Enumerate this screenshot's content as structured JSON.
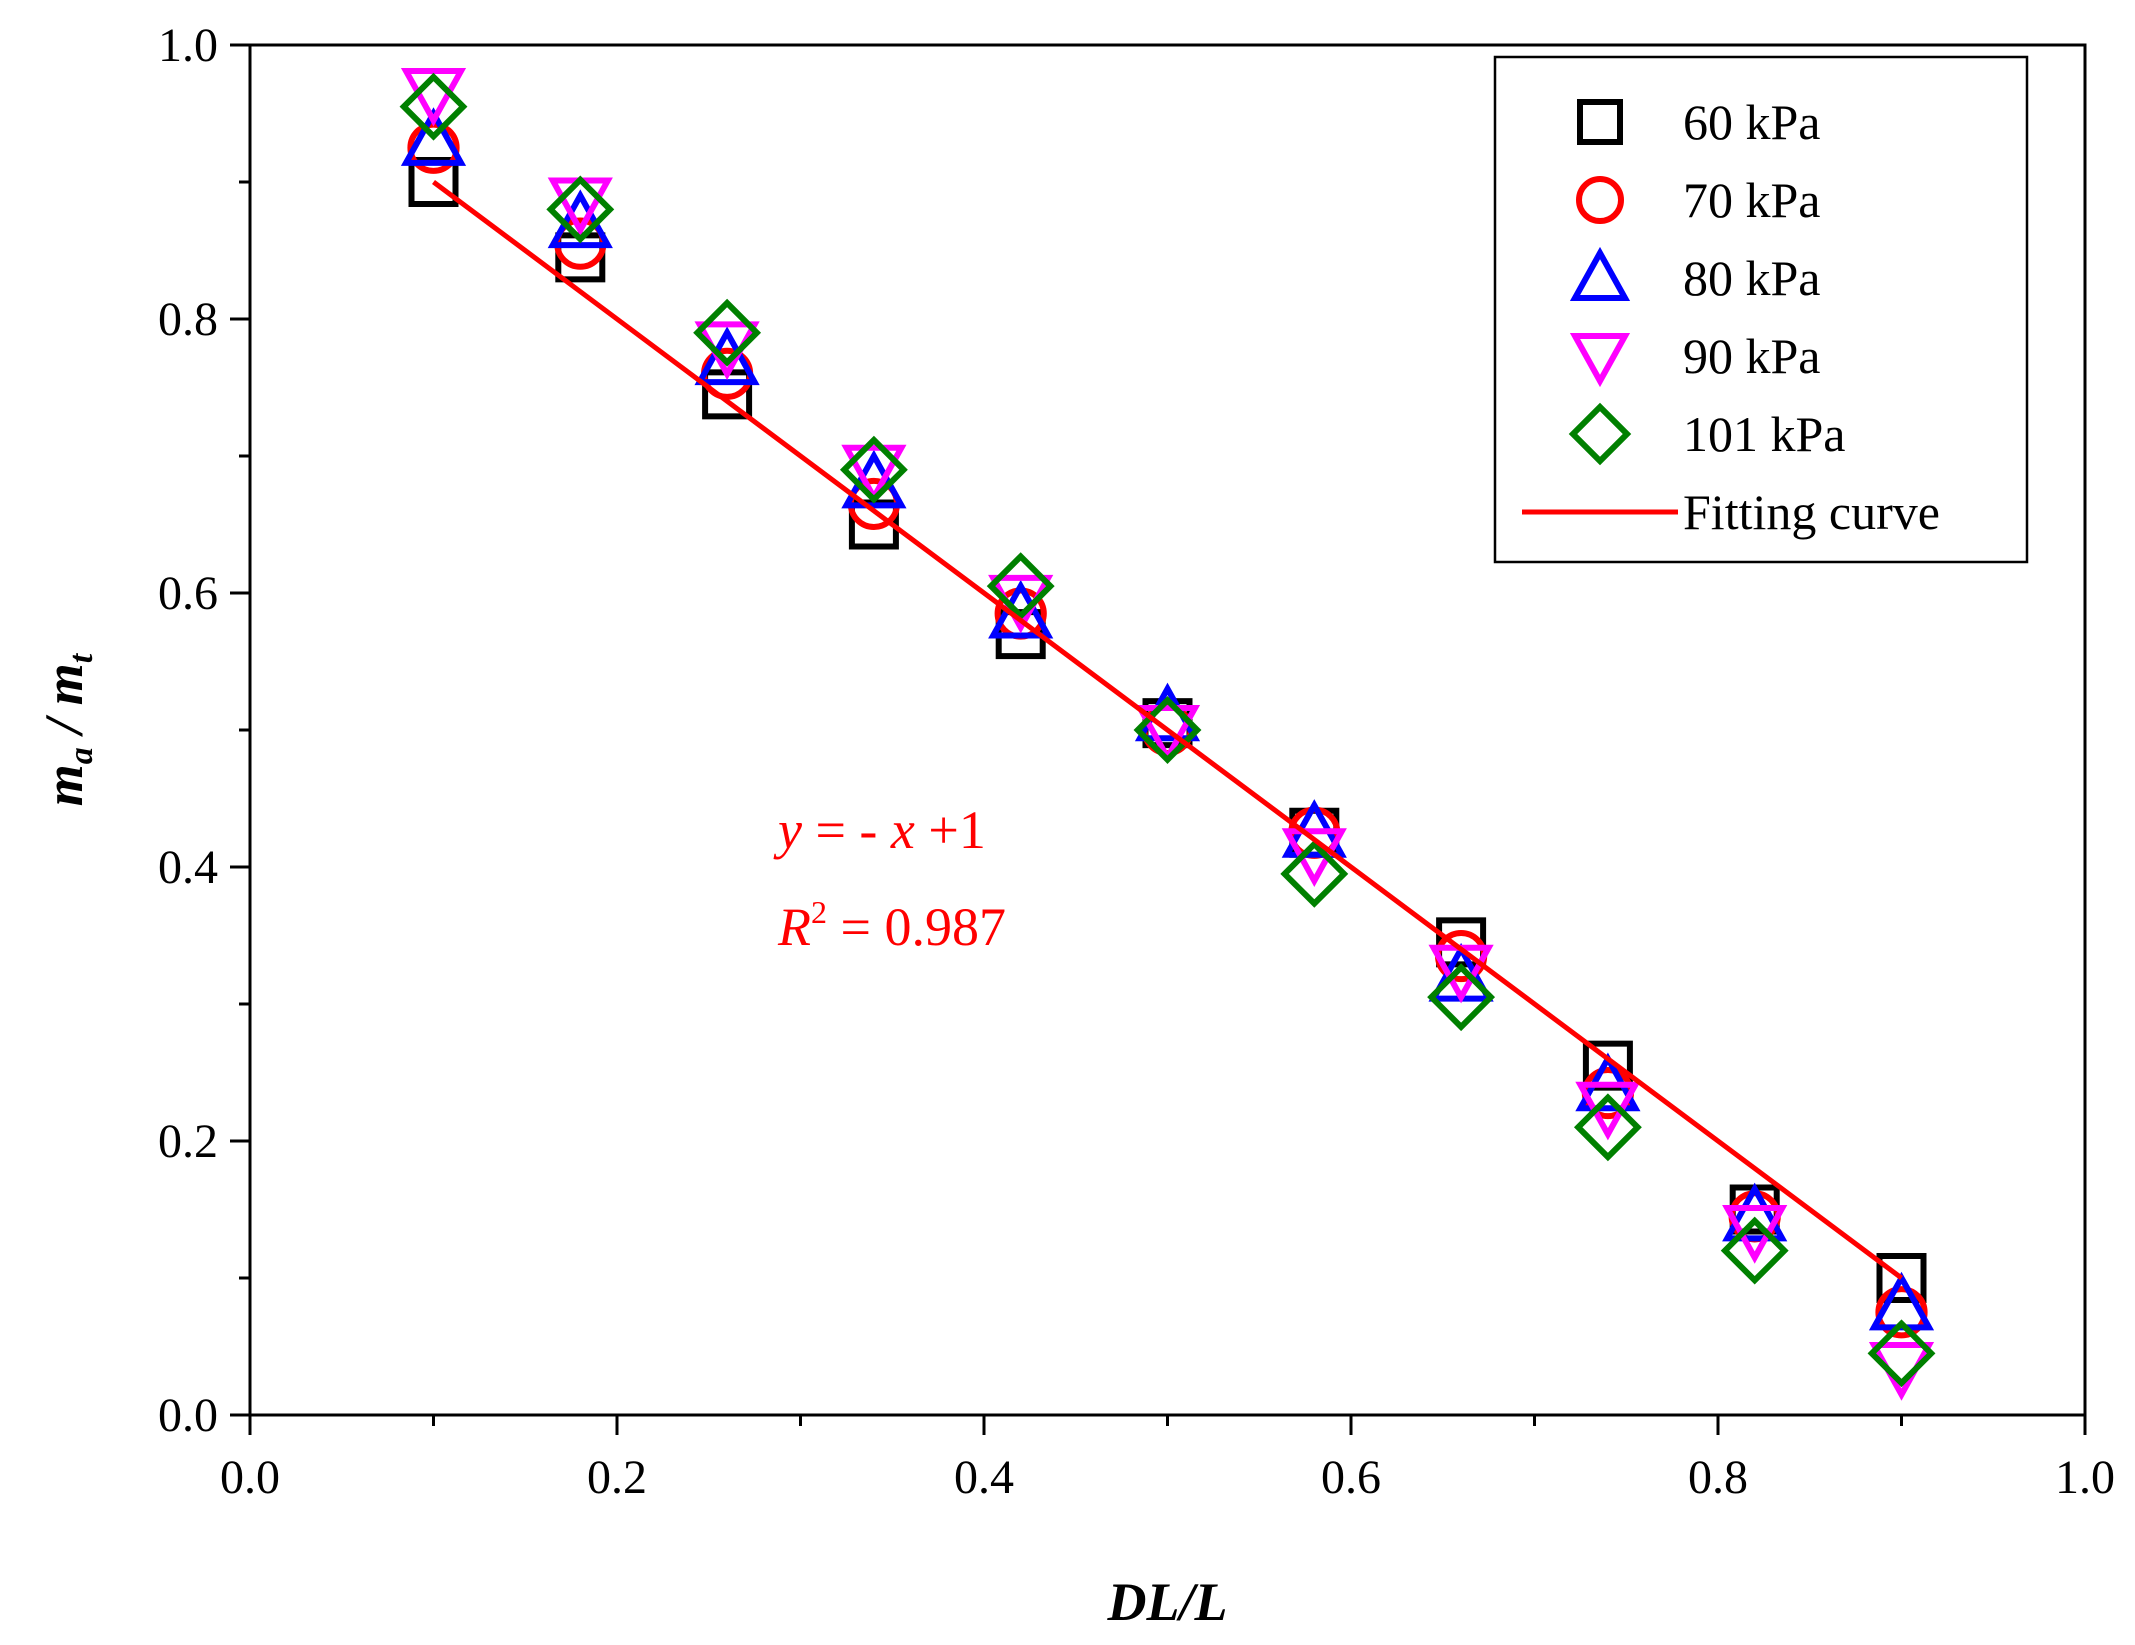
{
  "chart_data": {
    "type": "scatter",
    "title": "",
    "xlabel": "DL/L",
    "ylabel": {
      "main": "m",
      "sub_a": "a",
      "sep": " / ",
      "main2": "m",
      "sub_t": "t"
    },
    "xlim": [
      0.0,
      1.0
    ],
    "ylim": [
      0.0,
      1.0
    ],
    "x_ticks": [
      0.0,
      0.2,
      0.4,
      0.6,
      0.8,
      1.0
    ],
    "x_tick_labels": [
      "0.0",
      "0.2",
      "0.4",
      "0.6",
      "0.8",
      "1.0"
    ],
    "y_ticks": [
      0.0,
      0.2,
      0.4,
      0.6,
      0.8,
      1.0
    ],
    "y_tick_labels": [
      "0.0",
      "0.2",
      "0.4",
      "0.6",
      "0.8",
      "1.0"
    ],
    "grid": false,
    "legend_position": "top-right",
    "x": [
      0.1,
      0.18,
      0.26,
      0.34,
      0.42,
      0.5,
      0.58,
      0.66,
      0.74,
      0.82,
      0.9
    ],
    "series": [
      {
        "name": "60 kPa",
        "marker": "square",
        "color": "#000000",
        "values": [
          0.9,
          0.845,
          0.745,
          0.65,
          0.57,
          0.505,
          0.425,
          0.345,
          0.255,
          0.15,
          0.1
        ]
      },
      {
        "name": "70 kPa",
        "marker": "circle",
        "color": "#ff0000",
        "values": [
          0.925,
          0.855,
          0.76,
          0.665,
          0.585,
          0.5,
          0.425,
          0.335,
          0.235,
          0.145,
          0.075
        ]
      },
      {
        "name": "80 kPa",
        "marker": "triangle-up",
        "color": "#0000ff",
        "values": [
          0.93,
          0.87,
          0.77,
          0.68,
          0.585,
          0.51,
          0.425,
          0.32,
          0.24,
          0.145,
          0.08
        ]
      },
      {
        "name": "90 kPa",
        "marker": "triangle-down",
        "color": "#ff00ff",
        "values": [
          0.965,
          0.885,
          0.78,
          0.69,
          0.595,
          0.5,
          0.41,
          0.325,
          0.225,
          0.135,
          0.035
        ]
      },
      {
        "name": "101 kPa",
        "marker": "diamond",
        "color": "#008000",
        "values": [
          0.955,
          0.88,
          0.79,
          0.69,
          0.605,
          0.5,
          0.395,
          0.305,
          0.21,
          0.12,
          0.045
        ]
      }
    ],
    "fit_line": {
      "name": "Fitting curve",
      "color": "#ff0000",
      "x": [
        0.1,
        0.9
      ],
      "y": [
        0.9,
        0.1
      ]
    },
    "annotations": {
      "equation": {
        "y": "y",
        "eq": " = - ",
        "x": "x",
        "rest": " +1"
      },
      "r2": {
        "r": "R",
        "sup": "2",
        "rest": " = 0.987"
      }
    }
  }
}
